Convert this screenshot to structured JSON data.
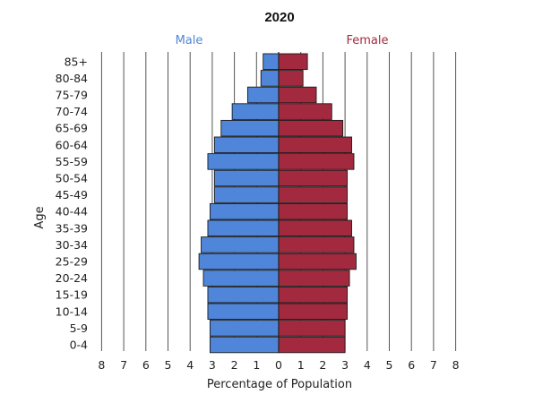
{
  "chart_data": {
    "type": "bar",
    "orientation": "horizontal",
    "title": "2020",
    "xlabel": "Percentage of Population",
    "ylabel": "Age",
    "xlim": [
      -8,
      8
    ],
    "x_ticks": [
      8,
      7,
      6,
      5,
      4,
      3,
      2,
      1,
      0,
      1,
      2,
      3,
      4,
      5,
      6,
      7,
      8
    ],
    "grid": true,
    "legend_placement": "top",
    "categories": [
      "85+",
      "80-84",
      "75-79",
      "70-74",
      "65-69",
      "60-64",
      "55-59",
      "50-54",
      "45-49",
      "40-44",
      "35-39",
      "30-34",
      "25-29",
      "20-24",
      "15-19",
      "10-14",
      "5-9",
      "0-4"
    ],
    "series": [
      {
        "name": "Male",
        "color": "#4f86d9",
        "values": [
          0.7,
          0.8,
          1.4,
          2.1,
          2.6,
          2.9,
          3.2,
          2.9,
          2.9,
          3.1,
          3.2,
          3.5,
          3.6,
          3.4,
          3.2,
          3.2,
          3.1,
          3.1
        ]
      },
      {
        "name": "Female",
        "color": "#a32a3e",
        "values": [
          1.3,
          1.1,
          1.7,
          2.4,
          2.9,
          3.3,
          3.4,
          3.1,
          3.1,
          3.1,
          3.3,
          3.4,
          3.5,
          3.2,
          3.1,
          3.1,
          3.0,
          3.0
        ]
      }
    ]
  }
}
